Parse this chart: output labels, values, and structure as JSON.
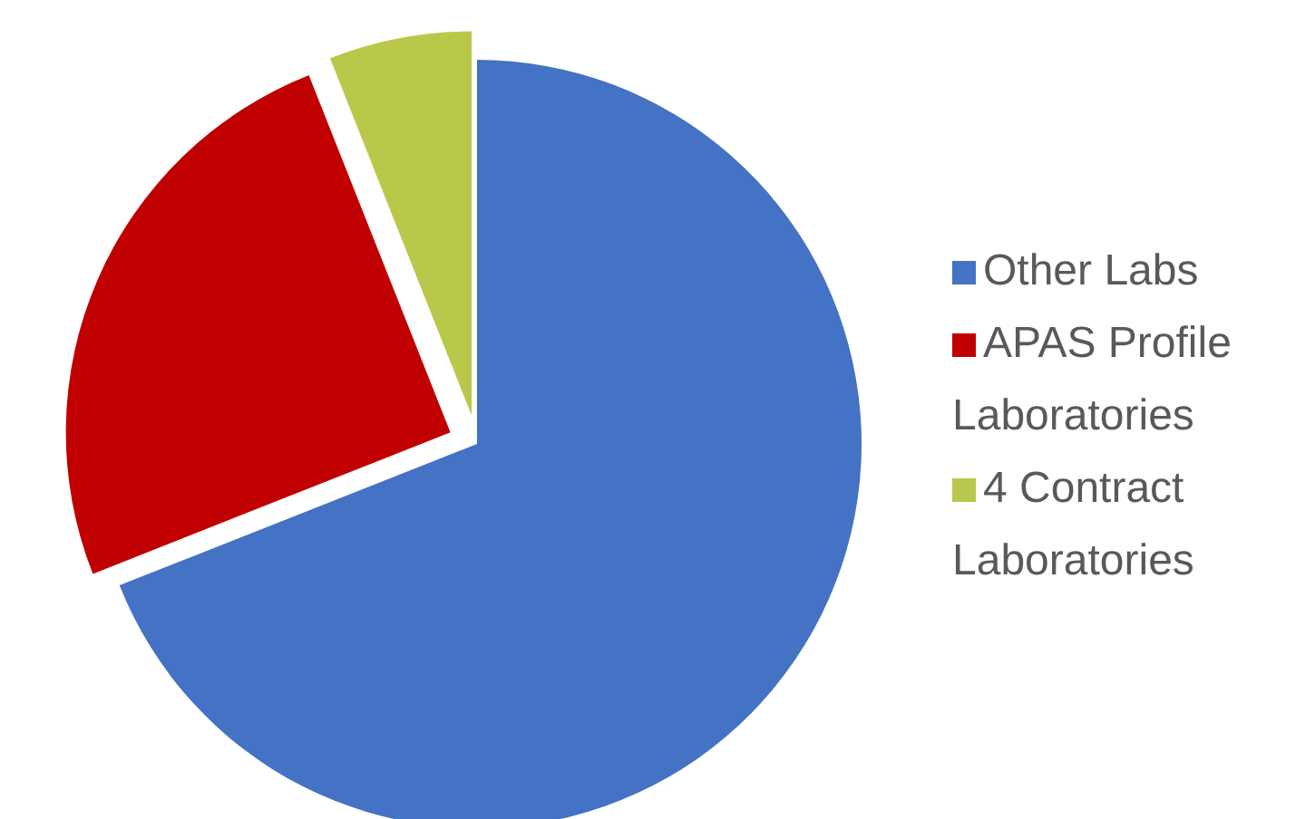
{
  "chart_data": {
    "type": "pie",
    "categories": [
      "Other Labs",
      "APAS Profile Laboratories",
      "4 Contract Laboratories"
    ],
    "values": [
      69,
      25,
      6
    ],
    "colors": [
      "#4472c4",
      "#c00000",
      "#b9c84a"
    ],
    "legend": "right"
  }
}
